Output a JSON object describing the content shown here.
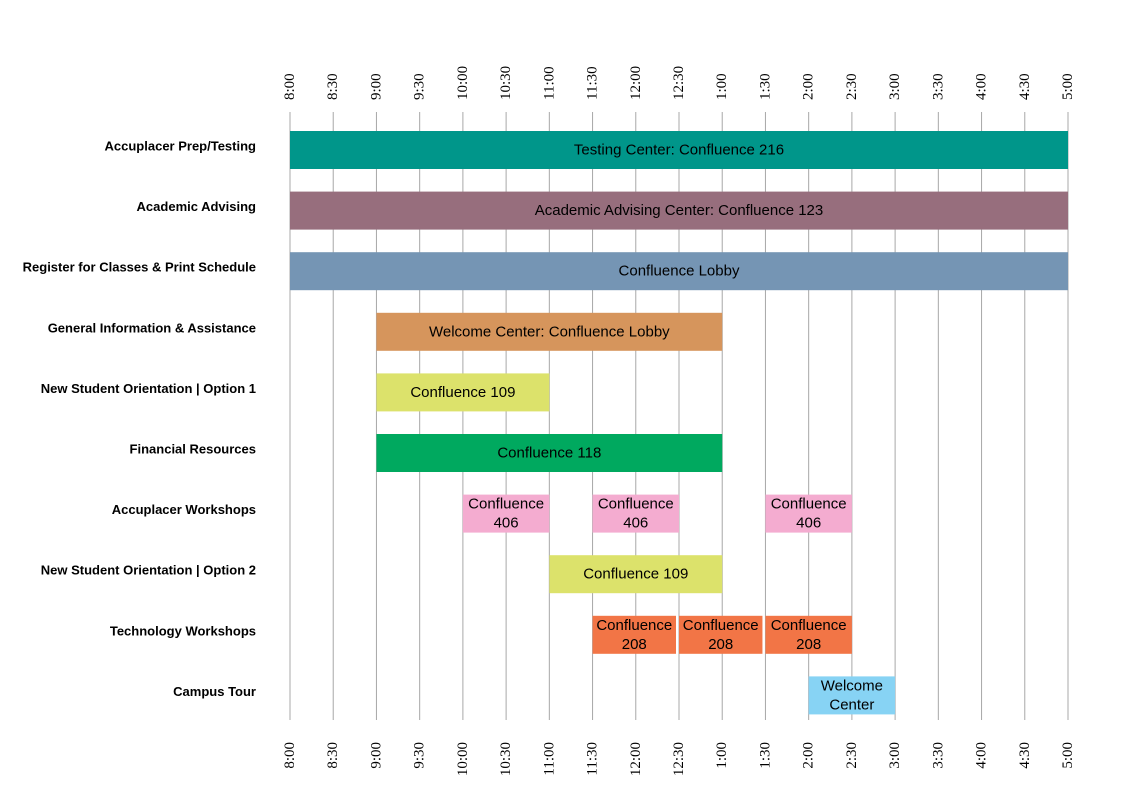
{
  "chart_data": {
    "type": "gantt",
    "title": "",
    "xlabel": "",
    "ylabel": "",
    "ticks": [
      "8:00",
      "8:30",
      "9:00",
      "9:30",
      "10:00",
      "10:30",
      "11:00",
      "11:30",
      "12:00",
      "12:30",
      "1:00",
      "1:30",
      "2:00",
      "2:30",
      "3:00",
      "3:30",
      "4:00",
      "4:30",
      "5:00"
    ],
    "rows": [
      {
        "label": "Accuplacer Prep/Testing",
        "bars": [
          {
            "start": "8:00",
            "end": "5:00",
            "lines": [
              "Testing Center: Confluence 216"
            ],
            "color": "#00968a"
          }
        ]
      },
      {
        "label": "Academic Advising",
        "bars": [
          {
            "start": "8:00",
            "end": "5:00",
            "lines": [
              "Academic Advising Center: Confluence 123"
            ],
            "color": "#976e7d"
          }
        ]
      },
      {
        "label": "Register for Classes & Print Schedule",
        "bars": [
          {
            "start": "8:00",
            "end": "5:00",
            "lines": [
              "Confluence Lobby"
            ],
            "color": "#7595b4"
          }
        ]
      },
      {
        "label": "General Information & Assistance",
        "bars": [
          {
            "start": "9:00",
            "end": "1:00",
            "lines": [
              "Welcome Center: Confluence Lobby"
            ],
            "color": "#d6955c"
          }
        ]
      },
      {
        "label": "New Student Orientation | Option 1",
        "bars": [
          {
            "start": "9:00",
            "end": "11:00",
            "lines": [
              "Confluence 109"
            ],
            "color": "#dce26b"
          }
        ]
      },
      {
        "label": "Financial Resources",
        "bars": [
          {
            "start": "9:00",
            "end": "1:00",
            "lines": [
              "Confluence 118"
            ],
            "color": "#00a95f"
          }
        ]
      },
      {
        "label": "Accuplacer Workshops",
        "bars": [
          {
            "start": "10:00",
            "end": "11:00",
            "lines": [
              "Confluence",
              "406"
            ],
            "color": "#f4acd0"
          },
          {
            "start": "11:30",
            "end": "12:30",
            "lines": [
              "Confluence",
              "406"
            ],
            "color": "#f4acd0"
          },
          {
            "start": "1:30",
            "end": "2:30",
            "lines": [
              "Confluence",
              "406"
            ],
            "color": "#f4acd0"
          }
        ]
      },
      {
        "label": "New Student Orientation | Option 2",
        "bars": [
          {
            "start": "11:00",
            "end": "1:00",
            "lines": [
              "Confluence 109"
            ],
            "color": "#dce26b"
          }
        ]
      },
      {
        "label": "Technology Workshops",
        "bars": [
          {
            "start": "11:30",
            "end": "12:30",
            "lines": [
              "Confluence",
              "208"
            ],
            "color": "#f27546"
          },
          {
            "start": "12:30",
            "end": "1:30",
            "lines": [
              "Confluence",
              "208"
            ],
            "color": "#f27546"
          },
          {
            "start": "1:30",
            "end": "2:30",
            "lines": [
              "Confluence",
              "208"
            ],
            "color": "#f27546"
          }
        ]
      },
      {
        "label": "Campus Tour",
        "bars": [
          {
            "start": "2:00",
            "end": "3:00",
            "lines": [
              "Welcome",
              "Center"
            ],
            "color": "#87d3f4"
          }
        ]
      }
    ]
  }
}
